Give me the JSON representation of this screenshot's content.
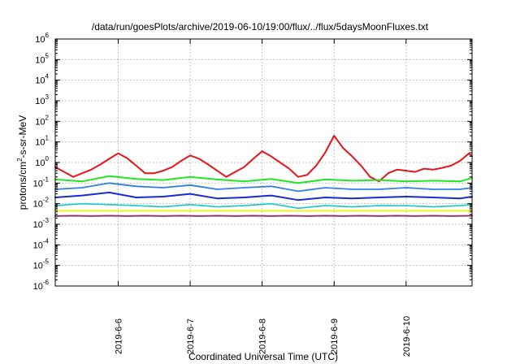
{
  "chart_data": {
    "type": "line",
    "title": "/data/run/goesPlots/archive/2019-06-10/19:00/flux/../flux/5daysMoonFluxes.txt",
    "xlabel": "Coordinated Universal Time (UTC)",
    "ylabel": "protons/cm²-s-sr-MeV",
    "ylabel_base": "protons/cm",
    "ylabel_sup": "2",
    "ylabel_rest": "-s-sr-MeV",
    "yscale": "log",
    "ylim": [
      1e-06,
      1000000.0
    ],
    "xlim": [
      "2019-06-05T03:00",
      "2019-06-10T22:00"
    ],
    "grid": true,
    "yticks": [
      {
        "exp": "-6"
      },
      {
        "exp": "-5"
      },
      {
        "exp": "-4"
      },
      {
        "exp": "-3"
      },
      {
        "exp": "-2"
      },
      {
        "exp": "-1"
      },
      {
        "exp": "0"
      },
      {
        "exp": "1"
      },
      {
        "exp": "2"
      },
      {
        "exp": "3"
      },
      {
        "exp": "4"
      },
      {
        "exp": "5"
      },
      {
        "exp": "6"
      }
    ],
    "xticks": [
      "2019-6-6",
      "2019-6-7",
      "2019-6-8",
      "2019-6-9",
      "2019-6-10"
    ],
    "series": [
      {
        "color": "#e8141a",
        "width": 2.0,
        "x": [
          "2019-06-05T03:00",
          "2019-06-05T06:00",
          "2019-06-05T09:00",
          "2019-06-05T12:00",
          "2019-06-05T15:00",
          "2019-06-05T18:00",
          "2019-06-05T21:00",
          "2019-06-06T00:00",
          "2019-06-06T03:00",
          "2019-06-06T06:00",
          "2019-06-06T09:00",
          "2019-06-06T12:00",
          "2019-06-06T15:00",
          "2019-06-06T18:00",
          "2019-06-06T21:00",
          "2019-06-07T00:00",
          "2019-06-07T03:00",
          "2019-06-07T06:00",
          "2019-06-07T09:00",
          "2019-06-07T12:00",
          "2019-06-07T15:00",
          "2019-06-07T18:00",
          "2019-06-07T21:00",
          "2019-06-08T00:00",
          "2019-06-08T03:00",
          "2019-06-08T06:00",
          "2019-06-08T09:00",
          "2019-06-08T12:00",
          "2019-06-08T15:00",
          "2019-06-08T18:00",
          "2019-06-08T21:00",
          "2019-06-09T00:00",
          "2019-06-09T03:00",
          "2019-06-09T06:00",
          "2019-06-09T09:00",
          "2019-06-09T12:00",
          "2019-06-09T15:00",
          "2019-06-09T18:00",
          "2019-06-09T21:00",
          "2019-06-10T00:00",
          "2019-06-10T03:00",
          "2019-06-10T06:00",
          "2019-06-10T09:00",
          "2019-06-10T12:00",
          "2019-06-10T15:00",
          "2019-06-10T18:00",
          "2019-06-10T21:00",
          "2019-06-10T22:00"
        ],
        "y": [
          0.6,
          0.35,
          0.2,
          0.3,
          0.45,
          0.8,
          1.5,
          2.8,
          1.6,
          0.7,
          0.3,
          0.3,
          0.4,
          0.6,
          1.2,
          2.2,
          1.5,
          0.8,
          0.4,
          0.2,
          0.35,
          0.6,
          1.5,
          3.5,
          2.0,
          1.0,
          0.5,
          0.2,
          0.25,
          0.7,
          3.0,
          20,
          5,
          2,
          0.7,
          0.2,
          0.12,
          0.3,
          0.45,
          0.4,
          0.35,
          0.5,
          0.45,
          0.55,
          0.7,
          1.2,
          2.8,
          2.0
        ]
      },
      {
        "color": "#22e822",
        "width": 2.0,
        "x": [
          "2019-06-05T03:00",
          "2019-06-05T12:00",
          "2019-06-05T21:00",
          "2019-06-06T06:00",
          "2019-06-06T15:00",
          "2019-06-07T00:00",
          "2019-06-07T09:00",
          "2019-06-07T18:00",
          "2019-06-08T03:00",
          "2019-06-08T12:00",
          "2019-06-08T21:00",
          "2019-06-09T06:00",
          "2019-06-09T15:00",
          "2019-06-10T00:00",
          "2019-06-10T09:00",
          "2019-06-10T18:00",
          "2019-06-10T22:00"
        ],
        "y": [
          0.15,
          0.12,
          0.22,
          0.16,
          0.14,
          0.2,
          0.15,
          0.12,
          0.16,
          0.1,
          0.15,
          0.13,
          0.14,
          0.12,
          0.13,
          0.12,
          0.18
        ]
      },
      {
        "color": "#2f7fe8",
        "width": 1.8,
        "x": [
          "2019-06-05T03:00",
          "2019-06-05T12:00",
          "2019-06-05T21:00",
          "2019-06-06T06:00",
          "2019-06-06T15:00",
          "2019-06-07T00:00",
          "2019-06-07T09:00",
          "2019-06-07T18:00",
          "2019-06-08T03:00",
          "2019-06-08T12:00",
          "2019-06-08T21:00",
          "2019-06-09T06:00",
          "2019-06-09T15:00",
          "2019-06-10T00:00",
          "2019-06-10T09:00",
          "2019-06-10T18:00",
          "2019-06-10T22:00"
        ],
        "y": [
          0.05,
          0.06,
          0.1,
          0.07,
          0.06,
          0.08,
          0.05,
          0.06,
          0.07,
          0.04,
          0.06,
          0.05,
          0.05,
          0.06,
          0.05,
          0.05,
          0.06
        ]
      },
      {
        "color": "#1a2ad6",
        "width": 2.0,
        "x": [
          "2019-06-05T03:00",
          "2019-06-05T12:00",
          "2019-06-05T21:00",
          "2019-06-06T06:00",
          "2019-06-06T15:00",
          "2019-06-07T00:00",
          "2019-06-07T09:00",
          "2019-06-07T18:00",
          "2019-06-08T03:00",
          "2019-06-08T12:00",
          "2019-06-08T21:00",
          "2019-06-09T06:00",
          "2019-06-09T15:00",
          "2019-06-10T00:00",
          "2019-06-10T09:00",
          "2019-06-10T18:00",
          "2019-06-10T22:00"
        ],
        "y": [
          0.02,
          0.025,
          0.035,
          0.02,
          0.022,
          0.03,
          0.018,
          0.02,
          0.025,
          0.015,
          0.02,
          0.018,
          0.02,
          0.022,
          0.02,
          0.018,
          0.022
        ]
      },
      {
        "color": "#18c8c8",
        "width": 1.6,
        "x": [
          "2019-06-05T03:00",
          "2019-06-05T12:00",
          "2019-06-05T21:00",
          "2019-06-06T06:00",
          "2019-06-06T15:00",
          "2019-06-07T00:00",
          "2019-06-07T09:00",
          "2019-06-07T18:00",
          "2019-06-08T03:00",
          "2019-06-08T12:00",
          "2019-06-08T21:00",
          "2019-06-09T06:00",
          "2019-06-09T15:00",
          "2019-06-10T00:00",
          "2019-06-10T09:00",
          "2019-06-10T18:00",
          "2019-06-10T22:00"
        ],
        "y": [
          0.008,
          0.01,
          0.009,
          0.008,
          0.007,
          0.009,
          0.007,
          0.008,
          0.01,
          0.006,
          0.008,
          0.007,
          0.008,
          0.008,
          0.007,
          0.008,
          0.009
        ]
      },
      {
        "color": "#f2f21a",
        "width": 2.0,
        "x": [
          "2019-06-05T03:00",
          "2019-06-06T03:00",
          "2019-06-07T03:00",
          "2019-06-08T03:00",
          "2019-06-09T03:00",
          "2019-06-10T03:00",
          "2019-06-10T22:00"
        ],
        "y": [
          0.0045,
          0.0045,
          0.0045,
          0.0045,
          0.0045,
          0.0045,
          0.0045
        ]
      },
      {
        "color": "#8e3a6e",
        "width": 2.0,
        "x": [
          "2019-06-05T03:00",
          "2019-06-05T09:00",
          "2019-06-05T15:00",
          "2019-06-05T21:00",
          "2019-06-06T03:00",
          "2019-06-06T09:00",
          "2019-06-06T15:00",
          "2019-06-06T21:00",
          "2019-06-07T03:00",
          "2019-06-07T09:00",
          "2019-06-07T15:00",
          "2019-06-07T21:00",
          "2019-06-08T03:00",
          "2019-06-08T09:00",
          "2019-06-08T15:00",
          "2019-06-08T21:00",
          "2019-06-09T03:00",
          "2019-06-09T09:00",
          "2019-06-09T15:00",
          "2019-06-09T21:00",
          "2019-06-10T03:00",
          "2019-06-10T09:00",
          "2019-06-10T15:00",
          "2019-06-10T22:00"
        ],
        "y": [
          0.0025,
          0.0026,
          0.0025,
          0.0026,
          0.0025,
          0.0026,
          0.0025,
          0.0026,
          0.0025,
          0.0026,
          0.0025,
          0.0026,
          0.0025,
          0.0026,
          0.0025,
          0.0026,
          0.0025,
          0.0026,
          0.0025,
          0.0026,
          0.0025,
          0.0026,
          0.0025,
          0.0026
        ]
      }
    ]
  }
}
